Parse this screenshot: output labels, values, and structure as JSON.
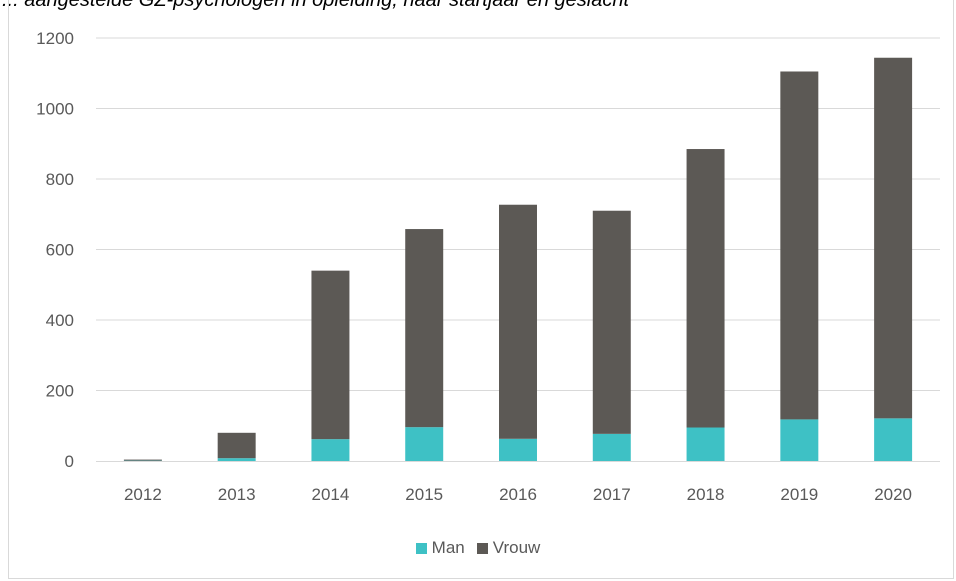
{
  "title_fragment": "... aangestelde GZ-psychologen in opleiding, naar startjaar en geslacht",
  "colors": {
    "man": "#3ec1c5",
    "vrouw": "#5c5955",
    "grid": "#d9d9d9",
    "axis_text": "#595959"
  },
  "chart_data": {
    "type": "bar",
    "stacked": true,
    "categories": [
      "2012",
      "2013",
      "2014",
      "2015",
      "2016",
      "2017",
      "2018",
      "2019",
      "2020"
    ],
    "series": [
      {
        "name": "Man",
        "values": [
          1,
          8,
          62,
          96,
          63,
          77,
          95,
          118,
          121
        ]
      },
      {
        "name": "Vrouw",
        "values": [
          3,
          72,
          478,
          562,
          664,
          633,
          790,
          987,
          1023
        ]
      }
    ],
    "ylim": [
      0,
      1200
    ],
    "yticks": [
      "0",
      "200",
      "400",
      "600",
      "800",
      "1000",
      "1200"
    ],
    "grid": true,
    "legend_position": "bottom"
  }
}
